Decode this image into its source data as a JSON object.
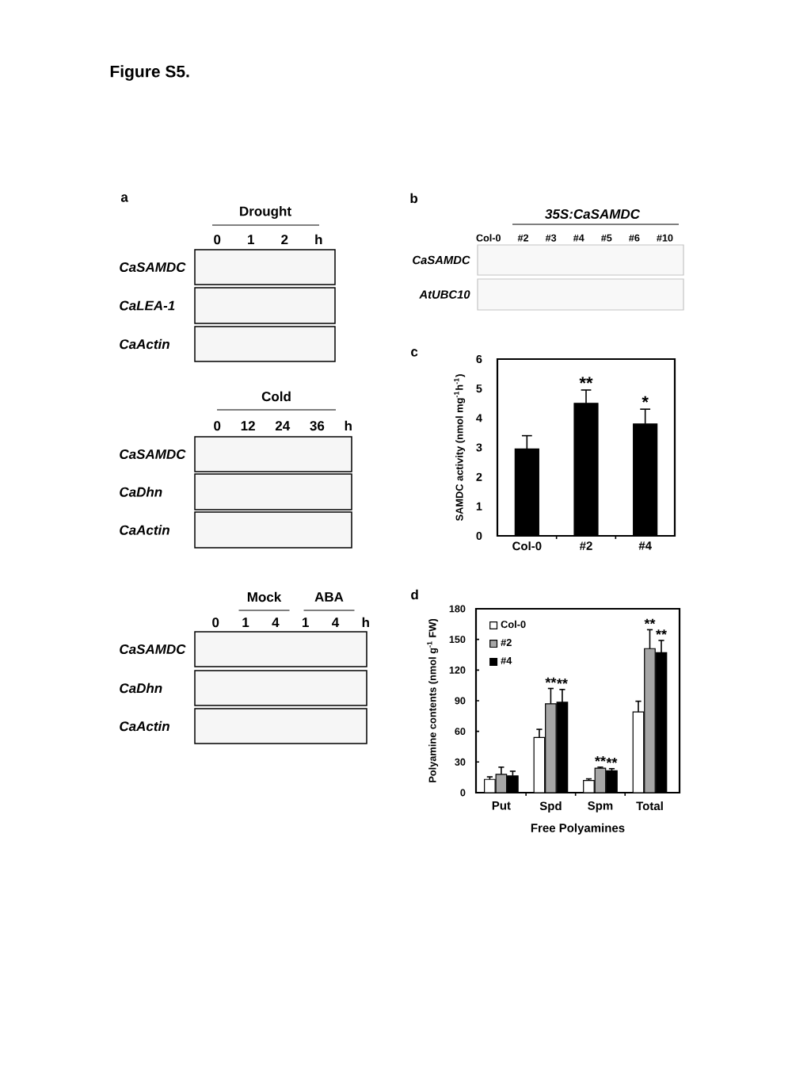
{
  "chart_data": [
    {
      "type": "other",
      "title": "Drought",
      "annotations": [
        "Figure S5.",
        "a",
        "0 1 2 h",
        "CaSAMDC",
        "CaLEA-1",
        "CaActin"
      ]
    },
    {
      "type": "other",
      "title": "Cold",
      "annotations": [
        "0 12 24 36 h",
        "CaSAMDC",
        "CaDhn",
        "CaActin"
      ]
    },
    {
      "type": "other",
      "annotations": [
        "Mock",
        "ABA",
        "0 1 4 1 4 h",
        "CaSAMDC",
        "CaDhn",
        "CaActin"
      ]
    },
    {
      "type": "other",
      "title": "35S:CaSAMDC",
      "annotations": [
        "b",
        "Col-0 #2 #3 #4 #5 #6 #10",
        "CaSAMDC",
        "AtUBC10"
      ]
    },
    {
      "type": "bar",
      "ylabel": "SAMDC activity (nmol mg$^{-1}$h$^{-1}$)",
      "categories": [
        "Col-0",
        "#2",
        "#4"
      ],
      "values": [
        2.95,
        4.5,
        3.8
      ],
      "errors": [
        [
          2.95,
          3.4
        ],
        [
          4.5,
          4.95
        ],
        [
          3.8,
          4.3
        ]
      ],
      "color": "#000000",
      "ylim": [
        0,
        6
      ],
      "yticks": [
        0,
        1,
        2,
        3,
        4,
        5,
        6
      ],
      "annotations": [
        "c",
        {
          "text": "**",
          "x": "#2",
          "y": 4.95
        },
        {
          "text": "*",
          "x": "#4",
          "y": 4.3
        }
      ]
    },
    {
      "type": "bar",
      "xlabel": "Free Polyamines",
      "ylabel": "Polyamine contents (nmol g$^{-1}$ FW)",
      "categories": [
        "Put",
        "Spd",
        "Spm",
        "Total"
      ],
      "series": [
        {
          "name": "Col-0",
          "color": "#ffffff",
          "values": [
            13,
            54,
            12,
            79
          ],
          "errors": [
            [
              13,
              15.5
            ],
            [
              54,
              62
            ],
            [
              12,
              13.5
            ],
            [
              79,
              89.5
            ]
          ]
        },
        {
          "name": "#2",
          "color": "#a6a6a6",
          "values": [
            18,
            87,
            24,
            141
          ],
          "errors": [
            [
              18,
              25
            ],
            [
              87,
              102
            ],
            [
              24,
              25
            ],
            [
              141,
              159.5
            ]
          ]
        },
        {
          "name": "#4",
          "color": "#000000",
          "values": [
            16.5,
            88.5,
            21.5,
            137
          ],
          "errors": [
            [
              16.5,
              21
            ],
            [
              88.5,
              101
            ],
            [
              21.5,
              23.5
            ],
            [
              137,
              149
            ]
          ]
        }
      ],
      "ylim": [
        0,
        180
      ],
      "yticks": [
        0,
        30,
        60,
        90,
        120,
        150,
        180
      ],
      "legend": "top left",
      "annotations": [
        "d",
        {
          "text": "**",
          "x": "Spd",
          "y": 102
        },
        {
          "text": "**",
          "x": "Spd",
          "y": 101
        },
        {
          "text": "**",
          "x": "Spm",
          "y": 25
        },
        {
          "text": "**",
          "x": "Spm",
          "y": 23.5
        },
        {
          "text": "**",
          "x": "Total",
          "y": 159.5
        },
        {
          "text": "**",
          "x": "Total",
          "y": 149
        }
      ]
    }
  ]
}
